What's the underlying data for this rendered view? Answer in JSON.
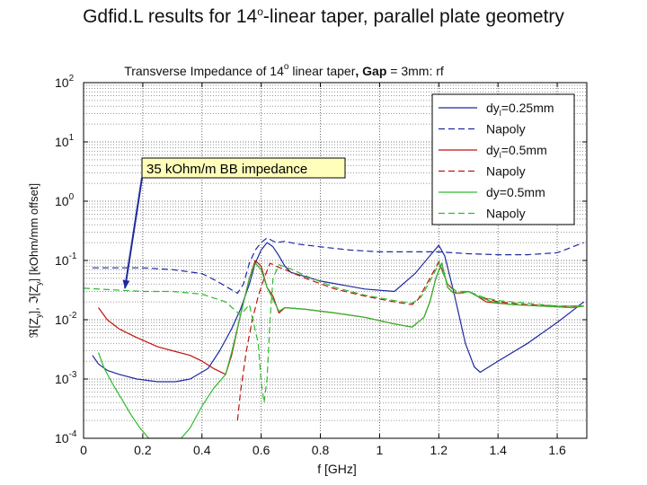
{
  "slide": {
    "title_main": "Gdfid.L results for 14",
    "title_sup": "o",
    "title_rest": "-linear taper, parallel plate geometry"
  },
  "chart_data": {
    "type": "line",
    "title_main": "Transverse Impedance of 14",
    "title_sup": "o",
    "title_mid": " linear taper",
    "title_bold": ", Gap",
    "title_end": " = 3mm: rf",
    "xlabel": "f [GHz]",
    "ylabel_parts": [
      "ℜ[Z",
      "y",
      "], ℑ[Z",
      "y",
      "] [kOhm/mm offset]"
    ],
    "x_scale": "linear",
    "y_scale": "log",
    "xlim": [
      0,
      1.7
    ],
    "ylim_exp": [
      -4,
      2
    ],
    "x_ticks": [
      "0",
      "0.2",
      "0.4",
      "0.6",
      "0.8",
      "1",
      "1.2",
      "1.4",
      "1.6"
    ],
    "y_ticks": [
      {
        "exp": -4,
        "base": "10",
        "sup": "-4"
      },
      {
        "exp": -3,
        "base": "10",
        "sup": "-3"
      },
      {
        "exp": -2,
        "base": "10",
        "sup": "-2"
      },
      {
        "exp": -1,
        "base": "10",
        "sup": "-1"
      },
      {
        "exp": 0,
        "base": "10",
        "sup": "0"
      },
      {
        "exp": 1,
        "base": "10",
        "sup": "1"
      },
      {
        "exp": 2,
        "base": "10",
        "sup": "2"
      }
    ],
    "grid": true,
    "legend_position": "top-right",
    "annotation": {
      "text": "35 kOhm/m BB impedance",
      "arrow_to": [
        0.14,
        0.034
      ]
    },
    "series": [
      {
        "name": "dy=0.25mm",
        "label_main": "dy",
        "label_sub": "l",
        "label_rest": "=0.25mm",
        "color": "#1f2a9e",
        "dash": "solid",
        "points": [
          [
            0.03,
            0.0025
          ],
          [
            0.05,
            0.0018
          ],
          [
            0.08,
            0.0014
          ],
          [
            0.12,
            0.0012
          ],
          [
            0.18,
            0.001
          ],
          [
            0.25,
            0.0009
          ],
          [
            0.31,
            0.0009
          ],
          [
            0.36,
            0.001
          ],
          [
            0.42,
            0.0015
          ],
          [
            0.46,
            0.003
          ],
          [
            0.5,
            0.007
          ],
          [
            0.53,
            0.015
          ],
          [
            0.56,
            0.04
          ],
          [
            0.58,
            0.09
          ],
          [
            0.6,
            0.15
          ],
          [
            0.62,
            0.2
          ],
          [
            0.64,
            0.17
          ],
          [
            0.66,
            0.12
          ],
          [
            0.68,
            0.08
          ],
          [
            0.7,
            0.063
          ],
          [
            0.8,
            0.045
          ],
          [
            0.95,
            0.033
          ],
          [
            1.05,
            0.03
          ],
          [
            1.12,
            0.06
          ],
          [
            1.17,
            0.12
          ],
          [
            1.2,
            0.18
          ],
          [
            1.22,
            0.12
          ],
          [
            1.25,
            0.03
          ],
          [
            1.29,
            0.004
          ],
          [
            1.32,
            0.0016
          ],
          [
            1.34,
            0.0013
          ],
          [
            1.4,
            0.002
          ],
          [
            1.5,
            0.004
          ],
          [
            1.6,
            0.009
          ],
          [
            1.69,
            0.02
          ]
        ]
      },
      {
        "name": "Napoly",
        "label_main": "Napoly",
        "label_sub": "",
        "label_rest": "",
        "color": "#1f2a9e",
        "dash": "dashed",
        "points": [
          [
            0.03,
            0.075
          ],
          [
            0.1,
            0.075
          ],
          [
            0.2,
            0.075
          ],
          [
            0.3,
            0.07
          ],
          [
            0.4,
            0.06
          ],
          [
            0.45,
            0.045
          ],
          [
            0.5,
            0.032
          ],
          [
            0.52,
            0.028
          ],
          [
            0.54,
            0.04
          ],
          [
            0.56,
            0.09
          ],
          [
            0.58,
            0.15
          ],
          [
            0.6,
            0.2
          ],
          [
            0.62,
            0.24
          ],
          [
            0.65,
            0.2
          ],
          [
            0.68,
            0.21
          ],
          [
            0.72,
            0.19
          ],
          [
            0.8,
            0.17
          ],
          [
            0.9,
            0.15
          ],
          [
            1.0,
            0.14
          ],
          [
            1.1,
            0.14
          ],
          [
            1.2,
            0.14
          ],
          [
            1.3,
            0.13
          ],
          [
            1.4,
            0.125
          ],
          [
            1.5,
            0.125
          ],
          [
            1.6,
            0.135
          ],
          [
            1.69,
            0.2
          ]
        ]
      },
      {
        "name": "dy=0.5mm",
        "label_main": "dy",
        "label_sub": "l",
        "label_rest": "=0.5mm",
        "color": "#c0140e",
        "dash": "solid",
        "points": [
          [
            0.05,
            0.016
          ],
          [
            0.08,
            0.01
          ],
          [
            0.12,
            0.007
          ],
          [
            0.18,
            0.005
          ],
          [
            0.25,
            0.0035
          ],
          [
            0.3,
            0.003
          ],
          [
            0.36,
            0.0025
          ],
          [
            0.4,
            0.002
          ],
          [
            0.44,
            0.0015
          ],
          [
            0.48,
            0.0012
          ],
          [
            0.5,
            0.0025
          ],
          [
            0.53,
            0.012
          ],
          [
            0.56,
            0.05
          ],
          [
            0.58,
            0.1
          ],
          [
            0.6,
            0.08
          ],
          [
            0.62,
            0.035
          ],
          [
            0.64,
            0.025
          ],
          [
            0.66,
            0.013
          ],
          [
            0.68,
            0.016
          ],
          [
            0.75,
            0.015
          ],
          [
            0.85,
            0.013
          ],
          [
            0.95,
            0.011
          ],
          [
            1.05,
            0.0085
          ],
          [
            1.11,
            0.0075
          ],
          [
            1.15,
            0.011
          ],
          [
            1.17,
            0.02
          ],
          [
            1.19,
            0.05
          ],
          [
            1.21,
            0.09
          ],
          [
            1.23,
            0.035
          ],
          [
            1.25,
            0.028
          ],
          [
            1.27,
            0.028
          ],
          [
            1.3,
            0.03
          ],
          [
            1.33,
            0.025
          ],
          [
            1.36,
            0.02
          ],
          [
            1.45,
            0.018
          ],
          [
            1.55,
            0.017
          ],
          [
            1.65,
            0.016
          ],
          [
            1.69,
            0.017
          ]
        ]
      },
      {
        "name": "Napoly",
        "label_main": "Napoly",
        "label_sub": "",
        "label_rest": "",
        "color": "#c0140e",
        "dash": "dashed",
        "points": [
          [
            0.52,
            0.0002
          ],
          [
            0.53,
            0.0006
          ],
          [
            0.55,
            0.003
          ],
          [
            0.57,
            0.01
          ],
          [
            0.59,
            0.025
          ],
          [
            0.61,
            0.05
          ],
          [
            0.63,
            0.09
          ],
          [
            0.65,
            0.08
          ],
          [
            0.68,
            0.07
          ],
          [
            0.75,
            0.05
          ],
          [
            0.85,
            0.033
          ],
          [
            0.95,
            0.025
          ],
          [
            1.05,
            0.02
          ],
          [
            1.11,
            0.018
          ],
          [
            1.13,
            0.022
          ],
          [
            1.17,
            0.05
          ],
          [
            1.2,
            0.095
          ],
          [
            1.23,
            0.04
          ],
          [
            1.26,
            0.028
          ],
          [
            1.3,
            0.03
          ],
          [
            1.33,
            0.025
          ],
          [
            1.4,
            0.02
          ],
          [
            1.5,
            0.018
          ],
          [
            1.6,
            0.017
          ],
          [
            1.69,
            0.017
          ]
        ]
      },
      {
        "name": "dy=0.5mm",
        "label_main": "dy=0.5mm",
        "label_sub": "",
        "label_rest": "",
        "color": "#2dbb2d",
        "dash": "solid",
        "points": [
          [
            0.05,
            0.0028
          ],
          [
            0.07,
            0.0015
          ],
          [
            0.1,
            0.0008
          ],
          [
            0.13,
            0.00045
          ],
          [
            0.16,
            0.00025
          ],
          [
            0.19,
            0.00015
          ],
          [
            0.22,
            0.0001
          ],
          [
            0.33,
            0.0001
          ],
          [
            0.36,
            0.00015
          ],
          [
            0.4,
            0.00035
          ],
          [
            0.44,
            0.0007
          ],
          [
            0.48,
            0.0012
          ],
          [
            0.5,
            0.0028
          ],
          [
            0.53,
            0.012
          ],
          [
            0.56,
            0.05
          ],
          [
            0.58,
            0.09
          ],
          [
            0.6,
            0.07
          ],
          [
            0.62,
            0.035
          ],
          [
            0.64,
            0.022
          ],
          [
            0.66,
            0.014
          ],
          [
            0.68,
            0.016
          ],
          [
            0.75,
            0.015
          ],
          [
            0.85,
            0.013
          ],
          [
            0.95,
            0.011
          ],
          [
            1.05,
            0.0085
          ],
          [
            1.11,
            0.0075
          ],
          [
            1.15,
            0.011
          ],
          [
            1.17,
            0.02
          ],
          [
            1.19,
            0.05
          ],
          [
            1.21,
            0.09
          ],
          [
            1.23,
            0.035
          ],
          [
            1.25,
            0.028
          ],
          [
            1.28,
            0.028
          ],
          [
            1.3,
            0.03
          ],
          [
            1.33,
            0.025
          ],
          [
            1.38,
            0.02
          ],
          [
            1.45,
            0.018
          ],
          [
            1.55,
            0.017
          ],
          [
            1.65,
            0.016
          ],
          [
            1.69,
            0.017
          ]
        ]
      },
      {
        "name": "Napoly",
        "label_main": "Napoly",
        "label_sub": "",
        "label_rest": "",
        "color": "#2dbb2d",
        "dash": "dashed",
        "points": [
          [
            0.0,
            0.034
          ],
          [
            0.1,
            0.032
          ],
          [
            0.2,
            0.03
          ],
          [
            0.3,
            0.03
          ],
          [
            0.4,
            0.027
          ],
          [
            0.48,
            0.02
          ],
          [
            0.53,
            0.012
          ],
          [
            0.56,
            0.018
          ],
          [
            0.59,
            0.004
          ],
          [
            0.6,
            0.0009
          ],
          [
            0.61,
            0.0004
          ],
          [
            0.62,
            0.001
          ],
          [
            0.63,
            0.01
          ],
          [
            0.64,
            0.05
          ],
          [
            0.66,
            0.085
          ],
          [
            0.7,
            0.072
          ],
          [
            0.75,
            0.055
          ],
          [
            0.85,
            0.035
          ],
          [
            0.95,
            0.026
          ],
          [
            1.05,
            0.021
          ],
          [
            1.11,
            0.019
          ],
          [
            1.14,
            0.024
          ],
          [
            1.18,
            0.055
          ],
          [
            1.2,
            0.09
          ],
          [
            1.23,
            0.04
          ],
          [
            1.26,
            0.03
          ],
          [
            1.3,
            0.03
          ],
          [
            1.35,
            0.024
          ],
          [
            1.4,
            0.021
          ],
          [
            1.5,
            0.019
          ],
          [
            1.6,
            0.017
          ],
          [
            1.69,
            0.017
          ]
        ]
      }
    ]
  }
}
